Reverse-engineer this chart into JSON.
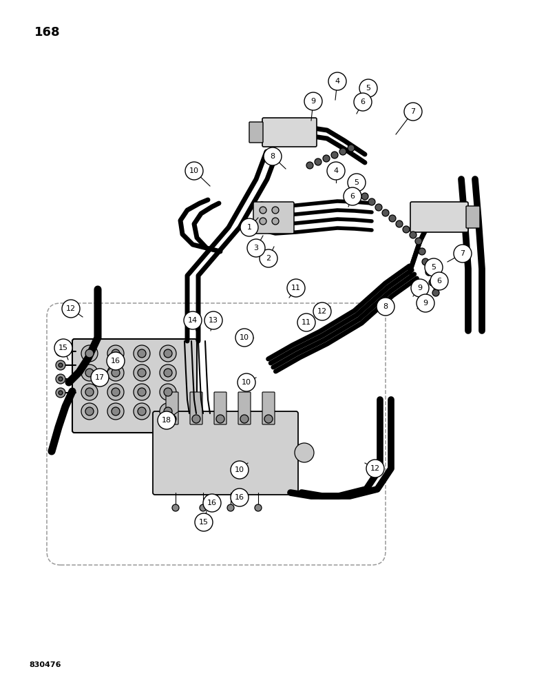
{
  "page_number": "168",
  "figure_code": "830476",
  "bg": "#ffffff",
  "fg": "#000000",
  "figsize": [
    7.8,
    10.0
  ],
  "dpi": 100
}
